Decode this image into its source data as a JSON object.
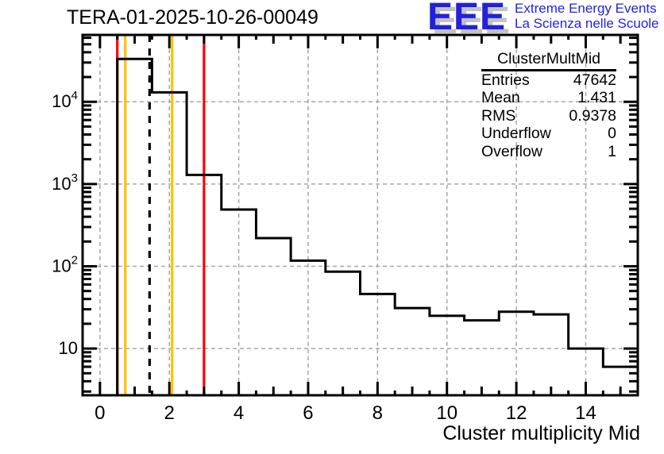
{
  "header": {
    "title": "TERA-01-2025-10-26-00049"
  },
  "logo": {
    "acronym": "EEE",
    "line1": "Extreme Energy Events",
    "line2": "La Scienza nelle Scuole",
    "color": "#2121dd",
    "shadow_color": "#c2c2c2"
  },
  "chart_data": {
    "type": "bar",
    "style": "step-histogram-outline",
    "title": "TERA-01-2025-10-26-00049",
    "xlabel": "Cluster multiplicity Mid",
    "ylabel": "",
    "y_scale": "log",
    "xlim": [
      -0.5,
      15.5
    ],
    "ylim": [
      2.7,
      65000
    ],
    "bin_width": 1,
    "bin_centers": [
      0,
      1,
      2,
      3,
      4,
      5,
      6,
      7,
      8,
      9,
      10,
      11,
      12,
      13,
      14,
      15
    ],
    "values": [
      0,
      33200,
      13000,
      1290,
      490,
      220,
      117,
      86,
      46,
      31,
      25,
      22,
      28,
      26,
      10,
      6
    ],
    "line_color": "#000000",
    "x_tick_values": [
      0,
      2,
      4,
      6,
      8,
      10,
      12,
      14
    ],
    "x_tick_labels": [
      "0",
      "2",
      "4",
      "6",
      "8",
      "10",
      "12",
      "14"
    ],
    "y_tick_values": [
      10,
      100,
      1000,
      10000
    ],
    "y_tick_exponents": [
      "",
      "2",
      "3",
      "4"
    ],
    "grid": {
      "on": true,
      "x_values": [
        0,
        2,
        4,
        6,
        8,
        10,
        12,
        14
      ],
      "y_values": [
        10,
        100,
        1000,
        10000
      ],
      "color": "#a6a6a6"
    },
    "marker_lines": [
      {
        "name": "red-lower-line",
        "x": 0.5,
        "color": "#ff0000",
        "style": "solid"
      },
      {
        "name": "orange-lower-line",
        "x": 0.73,
        "color": "#ffc000",
        "style": "solid"
      },
      {
        "name": "mean-dashed-line",
        "x": 1.43,
        "color": "#000000",
        "style": "dashed"
      },
      {
        "name": "orange-upper-line",
        "x": 2.08,
        "color": "#ffc000",
        "style": "solid"
      },
      {
        "name": "red-upper-line",
        "x": 3.0,
        "color": "#ff0000",
        "style": "solid"
      }
    ],
    "stats": {
      "title": "ClusterMultMid",
      "rows": [
        {
          "label": "Entries",
          "value": "47642"
        },
        {
          "label": "Mean",
          "value": "1.431"
        },
        {
          "label": "RMS",
          "value": "0.9378"
        },
        {
          "label": "Underflow",
          "value": "0"
        },
        {
          "label": "Overflow",
          "value": "1"
        }
      ]
    }
  }
}
